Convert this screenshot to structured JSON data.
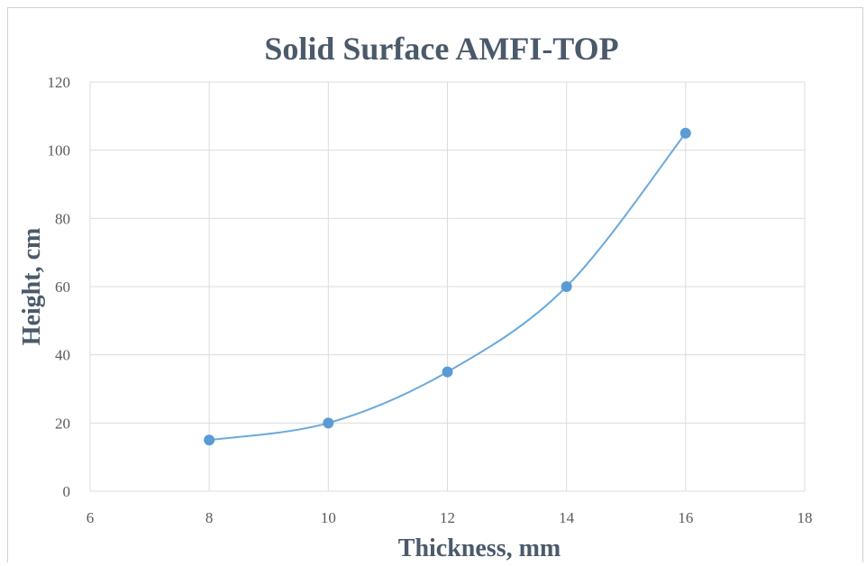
{
  "colors": {
    "series": "#5b9bd5",
    "line": "#6aa9dc",
    "text": "#4b5a6b",
    "grid": "#dcdcdc"
  },
  "chart_data": {
    "type": "scatter",
    "title": "Solid Surface AMFI-TOP",
    "xlabel": "Thickness, mm",
    "ylabel": "Height,  cm",
    "xlim": [
      6,
      18
    ],
    "ylim": [
      0,
      120
    ],
    "xticks": [
      6,
      8,
      10,
      12,
      14,
      16,
      18
    ],
    "yticks": [
      0,
      20,
      40,
      60,
      80,
      100,
      120
    ],
    "grid": true,
    "smooth_line": true,
    "series": [
      {
        "x": [
          8,
          10,
          12,
          14,
          16
        ],
        "y": [
          15,
          20,
          35,
          60,
          105
        ]
      }
    ]
  }
}
